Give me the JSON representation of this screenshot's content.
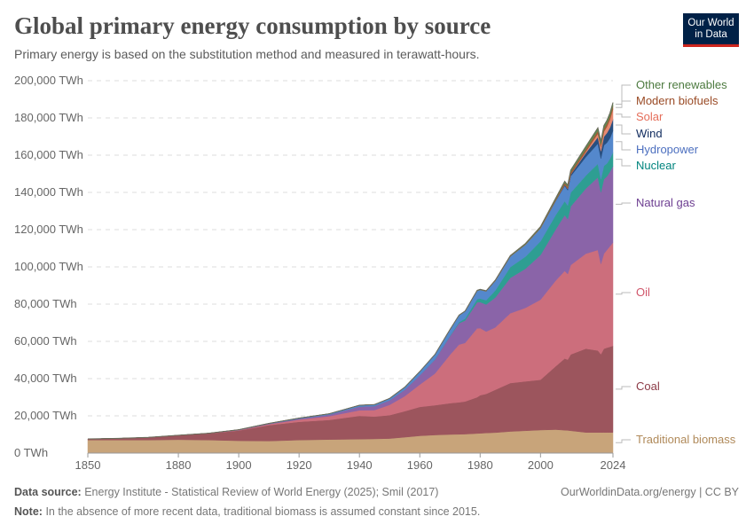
{
  "header": {
    "title": "Global primary energy consumption by source",
    "subtitle": "Primary energy is based on the substitution method and measured in terawatt-hours.",
    "logo": "Our World in Data"
  },
  "footer": {
    "source_label": "Data source:",
    "source": "Energy Institute - Statistical Review of World Energy (2025); Smil (2017)",
    "link": "OurWorldinData.org/energy | CC BY",
    "note_label": "Note:",
    "note": "In the absence of more recent data, traditional biomass is assumed constant since 2015."
  },
  "chart_data": {
    "type": "area",
    "stacked": true,
    "grid": "horizontal dashed",
    "legend": "right (inline labels)",
    "ylim": [
      0,
      200000
    ],
    "xlim": [
      1850,
      2024
    ],
    "yticks": [
      "0 TWh",
      "20,000 TWh",
      "40,000 TWh",
      "60,000 TWh",
      "80,000 TWh",
      "100,000 TWh",
      "120,000 TWh",
      "140,000 TWh",
      "160,000 TWh",
      "180,000 TWh",
      "200,000 TWh"
    ],
    "ytick_values": [
      0,
      20000,
      40000,
      60000,
      80000,
      100000,
      120000,
      140000,
      160000,
      180000,
      200000
    ],
    "xticks": [
      1850,
      1880,
      1900,
      1920,
      1940,
      1960,
      1980,
      2000,
      2024
    ],
    "x": [
      1850,
      1860,
      1870,
      1880,
      1890,
      1900,
      1910,
      1920,
      1930,
      1940,
      1945,
      1950,
      1955,
      1960,
      1965,
      1970,
      1973,
      1975,
      1979,
      1980,
      1982,
      1985,
      1990,
      1995,
      2000,
      2005,
      2008,
      2009,
      2010,
      2015,
      2019,
      2020,
      2021,
      2022,
      2023,
      2024
    ],
    "series": [
      {
        "name": "Traditional biomass",
        "color": "#c8a47a",
        "label_color": "#b08a5a",
        "values": [
          7000,
          7000,
          7000,
          7200,
          7000,
          6600,
          6500,
          7000,
          7300,
          7500,
          7600,
          7800,
          8500,
          9300,
          9700,
          10000,
          10100,
          10200,
          10500,
          10600,
          10800,
          11000,
          11600,
          12000,
          12400,
          12600,
          12300,
          12200,
          12000,
          11100,
          11100,
          11100,
          11100,
          11100,
          11100,
          11100
        ]
      },
      {
        "name": "Coal",
        "color": "#9c555d",
        "label_color": "#8c3a46",
        "values": [
          600,
          900,
          1400,
          2300,
          3500,
          5500,
          8500,
          9800,
          10500,
          12500,
          12000,
          12600,
          14000,
          15500,
          16000,
          16800,
          17200,
          17500,
          19500,
          20500,
          21000,
          23000,
          26000,
          26500,
          27000,
          34000,
          38500,
          38000,
          41000,
          45000,
          44000,
          42000,
          45000,
          45500,
          46000,
          46500
        ]
      },
      {
        "name": "Oil",
        "color": "#cc6e7c",
        "label_color": "#d0556a",
        "values": [
          0,
          0,
          10,
          50,
          100,
          200,
          500,
          1200,
          2000,
          3000,
          3500,
          5500,
          8000,
          12000,
          17000,
          26000,
          31000,
          31500,
          37000,
          36000,
          33500,
          33500,
          37500,
          39500,
          43000,
          46000,
          47000,
          46000,
          48000,
          51000,
          54000,
          48500,
          51000,
          52500,
          54000,
          55500
        ]
      },
      {
        "name": "Natural gas",
        "color": "#8a64a8",
        "label_color": "#6d3e91",
        "values": [
          0,
          0,
          0,
          10,
          50,
          200,
          300,
          500,
          900,
          2000,
          2200,
          2500,
          3500,
          5000,
          7500,
          10000,
          11500,
          12000,
          14000,
          14000,
          14500,
          16000,
          19000,
          21000,
          24000,
          27500,
          30000,
          29500,
          31500,
          35000,
          39000,
          38500,
          40000,
          39500,
          40000,
          41000
        ]
      },
      {
        "name": "Nuclear",
        "color": "#2e9e92",
        "label_color": "#00847e",
        "values": [
          0,
          0,
          0,
          0,
          0,
          0,
          0,
          0,
          0,
          0,
          0,
          0,
          0,
          0,
          100,
          200,
          600,
          1000,
          1700,
          1900,
          2300,
          3800,
          5800,
          6500,
          7300,
          7700,
          7500,
          7300,
          7400,
          6900,
          7300,
          7000,
          7200,
          6900,
          7000,
          7400
        ]
      },
      {
        "name": "Hydropower",
        "color": "#5488cc",
        "label_color": "#4c6fbf",
        "values": [
          0,
          0,
          0,
          0,
          20,
          60,
          150,
          300,
          450,
          700,
          800,
          1000,
          1400,
          2000,
          2600,
          3300,
          3600,
          3900,
          4500,
          4700,
          4800,
          5200,
          5700,
          6400,
          7000,
          7600,
          8200,
          8200,
          8800,
          10000,
          10800,
          11100,
          11000,
          11200,
          11000,
          11600
        ]
      },
      {
        "name": "Wind",
        "color": "#284f80",
        "label_color": "#102b5e",
        "values": [
          0,
          0,
          0,
          0,
          0,
          0,
          0,
          0,
          0,
          0,
          0,
          0,
          0,
          0,
          0,
          0,
          0,
          0,
          0,
          0,
          0,
          0,
          10,
          20,
          80,
          250,
          550,
          700,
          900,
          2200,
          3500,
          4000,
          4600,
          5200,
          5700,
          6200
        ]
      },
      {
        "name": "Solar",
        "color": "#e78a72",
        "label_color": "#e56e5a",
        "values": [
          0,
          0,
          0,
          0,
          0,
          0,
          0,
          0,
          0,
          0,
          0,
          0,
          0,
          0,
          0,
          0,
          0,
          0,
          0,
          0,
          0,
          0,
          0,
          0,
          0,
          10,
          30,
          50,
          90,
          650,
          1800,
          2200,
          2700,
          3400,
          4300,
          5400
        ]
      },
      {
        "name": "Modern biofuels",
        "color": "#a55a35",
        "label_color": "#9a4b26",
        "values": [
          0,
          0,
          0,
          0,
          0,
          0,
          0,
          0,
          0,
          0,
          0,
          0,
          0,
          0,
          0,
          0,
          0,
          0,
          0,
          30,
          50,
          80,
          100,
          150,
          250,
          500,
          1000,
          1050,
          1200,
          1400,
          1600,
          1500,
          1600,
          1700,
          1800,
          1800
        ]
      },
      {
        "name": "Other renewables",
        "color": "#5d8a52",
        "label_color": "#4c7a3f",
        "values": [
          0,
          0,
          0,
          0,
          0,
          0,
          0,
          0,
          0,
          0,
          0,
          0,
          0,
          50,
          80,
          120,
          150,
          170,
          220,
          230,
          250,
          300,
          400,
          500,
          600,
          750,
          900,
          950,
          1100,
          1400,
          1600,
          1650,
          1700,
          1700,
          1750,
          1800
        ]
      }
    ]
  }
}
